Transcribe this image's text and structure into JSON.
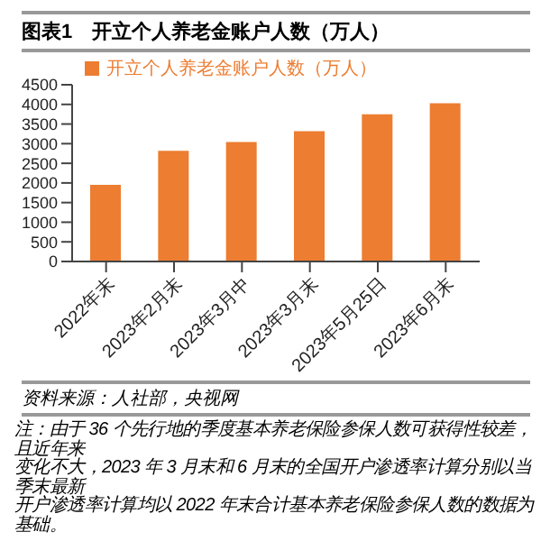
{
  "chart_data": {
    "type": "bar",
    "title": "图表1　开立个人养老金账户人数（万人）",
    "categories": [
      "2022年末",
      "2023年2月末",
      "2023年3月中",
      "2023年3月末",
      "2023年5月25日",
      "2023年6月末"
    ],
    "series": [
      {
        "name": "开立个人养老金账户人数（万人）",
        "color": "#ed7d31",
        "values": [
          1950,
          2820,
          3040,
          3320,
          3750,
          4030
        ]
      }
    ],
    "ylim": [
      0,
      4500
    ],
    "yticks": [
      0,
      500,
      1000,
      1500,
      2000,
      2500,
      3000,
      3500,
      4000,
      4500
    ],
    "grid": false,
    "legend": "top",
    "annotations": [
      "资料来源：人社部，央视网",
      "注：由于 36 个先行地的季度基本养老保险参保人数可获得性较差，且近年来",
      "变化不大，2023 年 3 月末和 6 月末的全国开户渗透率计算分别以当季末最新",
      "开户渗透率计算均以 2022 年末合计基本养老保险参保人数的数据为基础。"
    ]
  }
}
